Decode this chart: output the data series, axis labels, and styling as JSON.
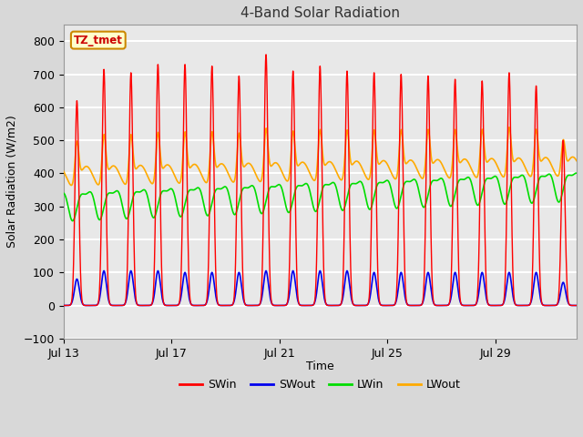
{
  "title": "4-Band Solar Radiation",
  "xlabel": "Time",
  "ylabel": "Solar Radiation (W/m2)",
  "ylim": [
    -100,
    850
  ],
  "yticks": [
    -100,
    0,
    100,
    200,
    300,
    400,
    500,
    600,
    700,
    800
  ],
  "x_tick_days": [
    0,
    4,
    8,
    12,
    16
  ],
  "x_tick_labels": [
    "Jul 13",
    "Jul 17",
    "Jul 21",
    "Jul 25",
    "Jul 29"
  ],
  "annotation_label": "TZ_tmet",
  "line_colors": {
    "SWin": "#ff0000",
    "SWout": "#0000ee",
    "LWin": "#00dd00",
    "LWout": "#ffaa00"
  },
  "bg_color": "#d8d8d8",
  "plot_bg_color": "#e8e8e8",
  "grid_color": "#ffffff",
  "n_days": 19,
  "SWin_peaks": [
    620,
    715,
    705,
    730,
    730,
    725,
    695,
    760,
    710,
    725,
    710,
    705,
    700,
    695,
    685,
    680,
    705,
    665,
    500
  ],
  "SWout_peaks": [
    80,
    105,
    105,
    105,
    100,
    100,
    100,
    105,
    105,
    105,
    105,
    100,
    100,
    100,
    100,
    100,
    100,
    100,
    70
  ],
  "LWin_base": 310,
  "LWin_amp": 40,
  "LWout_base": 390,
  "LWout_spike_amp": 160
}
